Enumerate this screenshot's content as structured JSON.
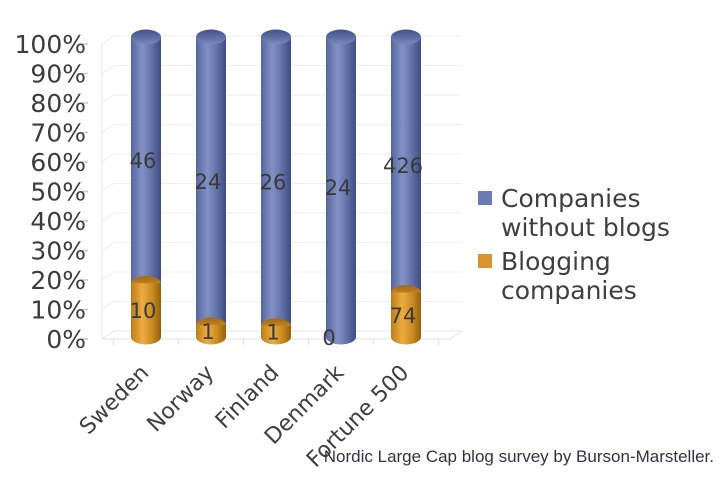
{
  "chart_data": {
    "type": "bar",
    "subtype": "100-percent-stacked-cylinder-3d",
    "title": "",
    "categories": [
      "Sweden",
      "Norway",
      "Finland",
      "Denmark",
      "Fortune 500"
    ],
    "series": [
      {
        "name": "Companies without blogs",
        "values": [
          46,
          24,
          26,
          24,
          426
        ],
        "color": "#6B7CB4",
        "stack_position": "top"
      },
      {
        "name": "Blogging companies",
        "values": [
          10,
          1,
          1,
          0,
          74
        ],
        "color": "#D9942C",
        "stack_position": "bottom"
      }
    ],
    "y_axis": {
      "min": 0,
      "max": 100,
      "tick_step": 10,
      "format": "percent",
      "tick_labels": [
        "0%",
        "10%",
        "20%",
        "30%",
        "40%",
        "50%",
        "60%",
        "70%",
        "80%",
        "90%",
        "100%"
      ]
    },
    "grid": true,
    "legend_position": "right",
    "caption": "Nordic Large Cap blog survey by Burson-Marsteller."
  },
  "colors": {
    "blue_body_light": "#8292C6",
    "blue_body_dark": "#404F85",
    "orange_body_light": "#EEAB40",
    "orange_body_dark": "#91600A",
    "label_text": "#3A3A3A",
    "axis_text": "#3C3C3C",
    "gridline": "#EDEEF0"
  }
}
